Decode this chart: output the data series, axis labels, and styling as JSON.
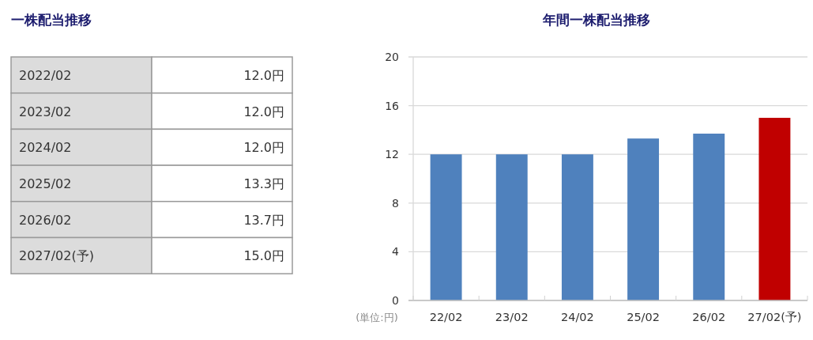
{
  "chart_data": [
    {
      "type": "other",
      "title": "一株配当推移",
      "categories": [
        "2022/02",
        "2023/02",
        "2024/02",
        "2025/02",
        "2026/02",
        "2027/02(予)"
      ],
      "value_labels": [
        "12.0円",
        "12.0円",
        "12.0円",
        "13.3円",
        "13.7円",
        "15.0円"
      ]
    },
    {
      "type": "bar",
      "title": "年間一株配当推移",
      "ylabel": "(単位:円)",
      "categories": [
        "22/02",
        "23/02",
        "24/02",
        "25/02",
        "26/02",
        "27/02(予)"
      ],
      "values": [
        12,
        12,
        12,
        13.3,
        13.7,
        15
      ],
      "colors": [
        "#4f81bd",
        "#4f81bd",
        "#4f81bd",
        "#4f81bd",
        "#4f81bd",
        "#c00000"
      ],
      "ylim": [
        0,
        20
      ],
      "yticks": [
        0,
        4,
        8,
        12,
        16,
        20
      ],
      "grid": "y"
    }
  ]
}
